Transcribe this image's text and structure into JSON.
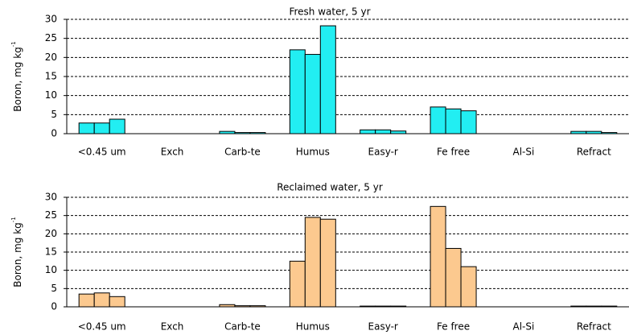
{
  "chart_data": [
    {
      "type": "bar",
      "title": "Fresh water, 5 yr",
      "ylabel": "Boron, mg kg",
      "ylabel_superscript": "-1",
      "categories": [
        "<0.45 um",
        "Exch",
        "Carb-te",
        "Humus",
        "Easy-r",
        "Fe free",
        "Al-Si",
        "Refract"
      ],
      "series": [
        {
          "color": "#22eef2",
          "values": [
            2.8,
            0,
            0.6,
            22,
            1.0,
            7,
            0,
            0.6
          ]
        },
        {
          "color": "#22eef2",
          "values": [
            2.8,
            0,
            0.3,
            20.8,
            1.0,
            6.5,
            0,
            0.6
          ]
        },
        {
          "color": "#22eef2",
          "values": [
            3.8,
            0,
            0.3,
            28.3,
            0.7,
            6,
            0,
            0.3
          ]
        }
      ],
      "ylim": [
        0,
        30
      ],
      "yticks": [
        0,
        5,
        10,
        15,
        20,
        25,
        30
      ],
      "grid": true
    },
    {
      "type": "bar",
      "title": "Reclaimed water, 5 yr",
      "ylabel": "Boron, mg kg",
      "ylabel_superscript": "-1",
      "categories": [
        "<0.45 um",
        "Exch",
        "Carb-te",
        "Humus",
        "Easy-r",
        "Fe free",
        "Al-Si",
        "Refract"
      ],
      "series": [
        {
          "color": "#fcc98f",
          "values": [
            3.5,
            0,
            0.6,
            12.5,
            0.2,
            27.5,
            0,
            0.2
          ]
        },
        {
          "color": "#fcc98f",
          "values": [
            3.8,
            0,
            0.3,
            24.5,
            0.2,
            16,
            0,
            0.2
          ]
        },
        {
          "color": "#fcc98f",
          "values": [
            2.8,
            0,
            0.3,
            24,
            0.2,
            11,
            0,
            0.2
          ]
        }
      ],
      "ylim": [
        0,
        30
      ],
      "yticks": [
        0,
        5,
        10,
        15,
        20,
        25,
        30
      ],
      "grid": true
    }
  ]
}
